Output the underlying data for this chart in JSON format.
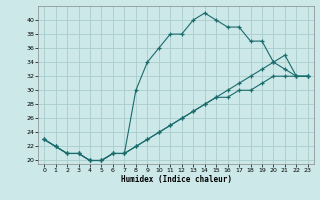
{
  "xlabel": "Humidex (Indice chaleur)",
  "bg_color": "#cce8e8",
  "grid_color": "#aacccc",
  "line_color": "#1a6b6b",
  "xlim": [
    -0.5,
    23.5
  ],
  "ylim": [
    19.5,
    42
  ],
  "xticks": [
    0,
    1,
    2,
    3,
    4,
    5,
    6,
    7,
    8,
    9,
    10,
    11,
    12,
    13,
    14,
    15,
    16,
    17,
    18,
    19,
    20,
    21,
    22,
    23
  ],
  "yticks": [
    20,
    22,
    24,
    26,
    28,
    30,
    32,
    34,
    36,
    38,
    40
  ],
  "curve1_x": [
    0,
    1,
    2,
    3,
    4,
    5,
    6,
    7,
    8,
    9,
    10,
    11,
    12,
    13,
    14,
    15,
    16,
    17,
    18,
    19,
    20,
    21,
    22,
    23
  ],
  "curve1_y": [
    23,
    22,
    21,
    21,
    20,
    20,
    21,
    21,
    30,
    34,
    36,
    38,
    38,
    40,
    41,
    40,
    39,
    39,
    37,
    37,
    34,
    33,
    32,
    32
  ],
  "curve2_x": [
    0,
    1,
    2,
    3,
    4,
    5,
    6,
    7,
    8,
    9,
    10,
    11,
    12,
    13,
    14,
    15,
    16,
    17,
    18,
    19,
    20,
    21,
    22,
    23
  ],
  "curve2_y": [
    23,
    22,
    21,
    21,
    20,
    20,
    21,
    21,
    22,
    23,
    24,
    25,
    26,
    27,
    28,
    29,
    30,
    31,
    32,
    33,
    34,
    35,
    32,
    32
  ],
  "curve3_x": [
    0,
    1,
    2,
    3,
    4,
    5,
    6,
    7,
    8,
    9,
    10,
    11,
    12,
    13,
    14,
    15,
    16,
    17,
    18,
    19,
    20,
    21,
    22,
    23
  ],
  "curve3_y": [
    23,
    22,
    21,
    21,
    20,
    20,
    21,
    21,
    22,
    23,
    24,
    25,
    26,
    27,
    28,
    29,
    29,
    30,
    30,
    31,
    32,
    32,
    32,
    32
  ]
}
